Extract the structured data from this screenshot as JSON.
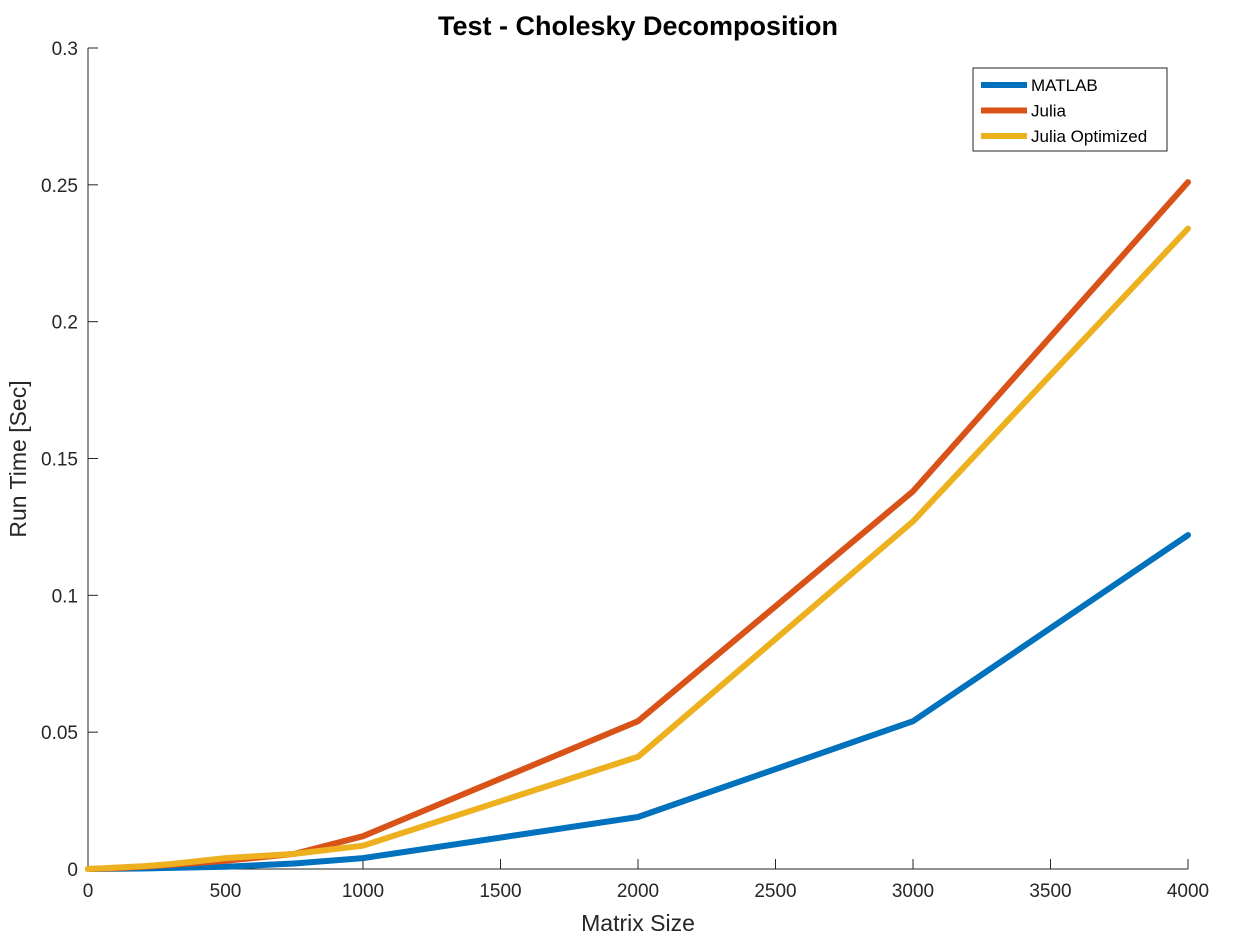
{
  "chart_data": {
    "type": "line",
    "title": "Test - Cholesky Decomposition",
    "xlabel": "Matrix Size",
    "ylabel": "Run Time  [Sec]",
    "xlim": [
      0,
      4000
    ],
    "ylim": [
      0,
      0.3
    ],
    "x_ticks": [
      "0",
      "500",
      "1000",
      "1500",
      "2000",
      "2500",
      "3000",
      "3500",
      "4000"
    ],
    "y_ticks": [
      "0",
      "0.05",
      "0.1",
      "0.15",
      "0.2",
      "0.25",
      "0.3"
    ],
    "grid": false,
    "legend_position": "top-right",
    "series": [
      {
        "name": "MATLAB",
        "color": "#0072BD",
        "x": [
          0,
          100,
          200,
          300,
          500,
          750,
          1000,
          2000,
          3000,
          4000
        ],
        "y": [
          0.0,
          0.0001,
          0.0002,
          0.0004,
          0.0008,
          0.002,
          0.004,
          0.019,
          0.054,
          0.122
        ]
      },
      {
        "name": "Julia",
        "color": "#D95319",
        "x": [
          0,
          100,
          200,
          300,
          500,
          750,
          1000,
          2000,
          3000,
          4000
        ],
        "y": [
          0.0,
          0.0003,
          0.0008,
          0.0015,
          0.003,
          0.0055,
          0.012,
          0.054,
          0.138,
          0.251
        ]
      },
      {
        "name": "Julia Optimized",
        "color": "#EDB120",
        "x": [
          0,
          100,
          200,
          300,
          500,
          750,
          1000,
          2000,
          3000,
          4000
        ],
        "y": [
          0.0,
          0.0005,
          0.001,
          0.0018,
          0.004,
          0.0055,
          0.0085,
          0.041,
          0.127,
          0.234
        ]
      }
    ]
  }
}
